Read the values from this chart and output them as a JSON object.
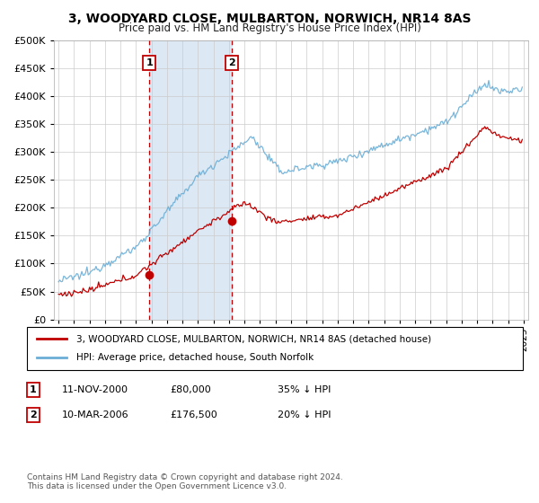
{
  "title": "3, WOODYARD CLOSE, MULBARTON, NORWICH, NR14 8AS",
  "subtitle": "Price paid vs. HM Land Registry's House Price Index (HPI)",
  "legend_line1": "3, WOODYARD CLOSE, MULBARTON, NORWICH, NR14 8AS (detached house)",
  "legend_line2": "HPI: Average price, detached house, South Norfolk",
  "sale1_date": "11-NOV-2000",
  "sale1_price": "£80,000",
  "sale1_pct": "35% ↓ HPI",
  "sale1_year": 2000.87,
  "sale1_value": 80000,
  "sale2_date": "10-MAR-2006",
  "sale2_price": "£176,500",
  "sale2_pct": "20% ↓ HPI",
  "sale2_year": 2006.19,
  "sale2_value": 176500,
  "hpi_color": "#6baed6",
  "price_color": "#c00000",
  "shade_color": "#dce9f5",
  "marker_box_color": "#c00000",
  "footer": "Contains HM Land Registry data © Crown copyright and database right 2024.\nThis data is licensed under the Open Government Licence v3.0.",
  "ylim": [
    0,
    500000
  ],
  "xlim_start": 1994.7,
  "xlim_end": 2025.3
}
